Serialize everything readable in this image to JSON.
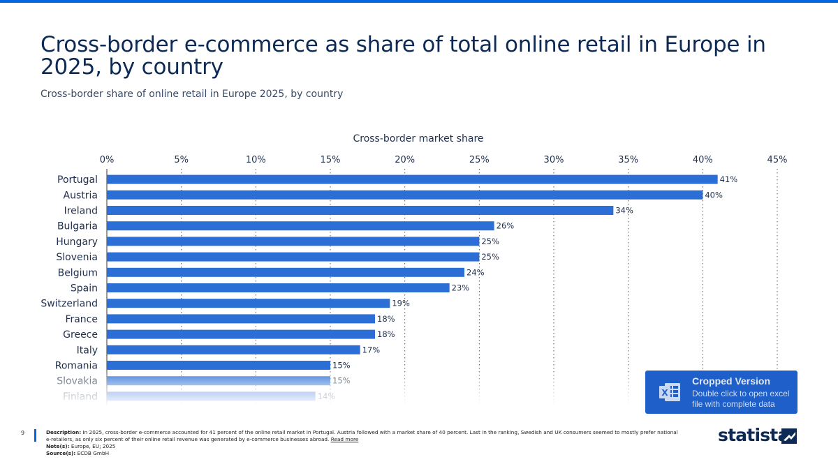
{
  "page": {
    "title": "Cross-border e-commerce as share of total online retail in Europe in 2025, by country",
    "subtitle": "Cross-border share of online retail in Europe 2025, by country"
  },
  "chart_data": {
    "type": "bar",
    "orientation": "horizontal",
    "xlabel": "Cross-border market share",
    "xlim": [
      0,
      45
    ],
    "ticks": [
      0,
      5,
      10,
      15,
      20,
      25,
      30,
      35,
      40,
      45
    ],
    "tick_labels": [
      "0%",
      "5%",
      "10%",
      "15%",
      "20%",
      "25%",
      "30%",
      "35%",
      "40%",
      "45%"
    ],
    "categories": [
      "Portugal",
      "Austria",
      "Ireland",
      "Bulgaria",
      "Hungary",
      "Slovenia",
      "Belgium",
      "Spain",
      "Switzerland",
      "France",
      "Greece",
      "Italy",
      "Romania",
      "Slovakia",
      "Finland"
    ],
    "values": [
      41,
      40,
      34,
      26,
      25,
      25,
      24,
      23,
      19,
      18,
      18,
      17,
      15,
      15,
      14
    ],
    "value_labels": [
      "41%",
      "40%",
      "34%",
      "26%",
      "25%",
      "25%",
      "24%",
      "23%",
      "19%",
      "18%",
      "18%",
      "17%",
      "15%",
      "15%",
      "14%"
    ],
    "bar_color": "#2b6fd6",
    "grid": true,
    "grid_style": "dotted vertical"
  },
  "excel_box": {
    "title": "Cropped Version",
    "text": "Double click to open excel file with complete data",
    "icon": "excel-icon"
  },
  "footer": {
    "page_number": "9",
    "description_label": "Description:",
    "description": "In 2025, cross-border e-commerce accounted for 41 percent of the online retail market in Portugal. Austria followed with a market share of 40 percent. Last in the ranking, Swedish and UK consumers seemed to mostly prefer national e-retailers, as only six percent of their online retail revenue was generated by e-commerce businesses abroad.",
    "read_more": "Read more",
    "notes_label": "Note(s):",
    "notes": "Europe, EU; 2025",
    "source_label": "Source(s):",
    "source": "ECDB GmbH",
    "logo": "statista"
  },
  "colors": {
    "accent": "#0666e0",
    "title": "#0d2a55",
    "excel_box": "#1e5fc9"
  }
}
